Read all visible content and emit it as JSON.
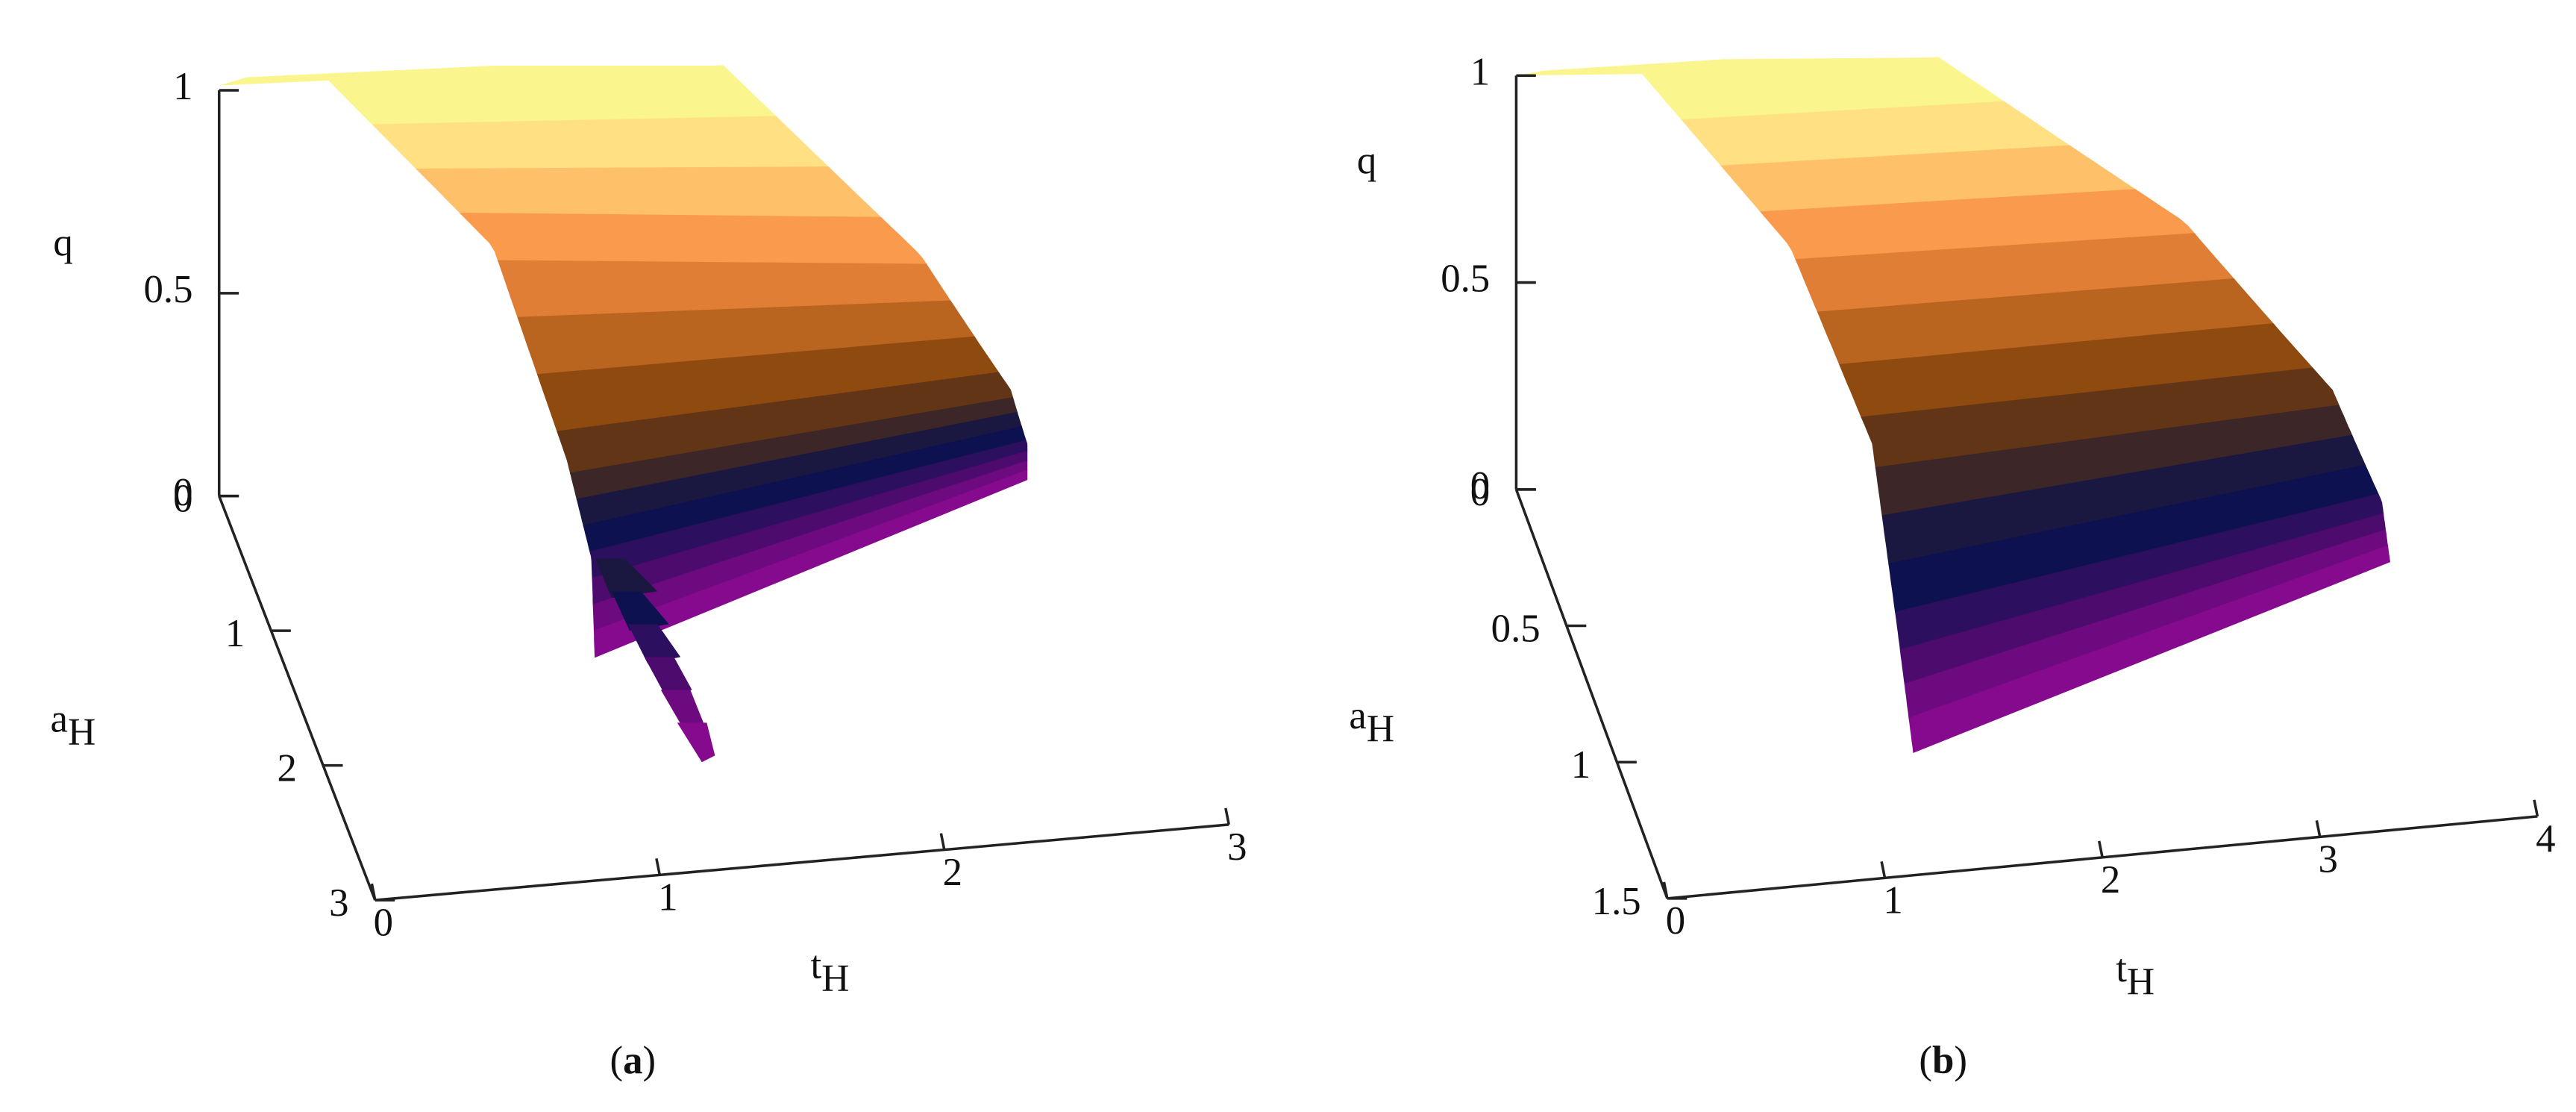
{
  "chart_data": [
    {
      "type": "surface3d",
      "caption": "(a)",
      "caption_bold": "a",
      "zlabel": "q",
      "ylabel": "a_H",
      "xlabel": "t_H",
      "zlim": [
        0,
        1
      ],
      "zticks": [
        0,
        0.5,
        1
      ],
      "ylim": [
        0,
        3
      ],
      "yticks": [
        0,
        1,
        2,
        3
      ],
      "xlim": [
        0,
        3
      ],
      "xticks": [
        0,
        1,
        2,
        3
      ],
      "colormap": [
        "#fbf58e",
        "#ffe083",
        "#ffc06a",
        "#f99a4c",
        "#e07e36",
        "#b9641f",
        "#8f4a10",
        "#633517",
        "#3c2627",
        "#1a1840",
        "#0d1150",
        "#2c0f5e",
        "#4d0b6e",
        "#6d0a80",
        "#860a8e"
      ]
    },
    {
      "type": "surface3d",
      "caption": "(b)",
      "caption_bold": "b",
      "zlabel": "q",
      "ylabel": "a_H",
      "xlabel": "t_H",
      "zlim": [
        0,
        1
      ],
      "zticks": [
        0,
        0.5,
        1
      ],
      "ylim": [
        0,
        1.5
      ],
      "yticks": [
        0,
        0.5,
        1,
        1.5
      ],
      "xlim": [
        0,
        4
      ],
      "xticks": [
        0,
        1,
        2,
        3,
        4
      ],
      "colormap": [
        "#fbf58e",
        "#ffe083",
        "#ffc06a",
        "#f99a4c",
        "#e07e36",
        "#b9641f",
        "#8f4a10",
        "#633517",
        "#3c2627",
        "#1a1840",
        "#0d1150",
        "#2c0f5e",
        "#4d0b6e",
        "#6d0a80",
        "#860a8e"
      ]
    }
  ]
}
